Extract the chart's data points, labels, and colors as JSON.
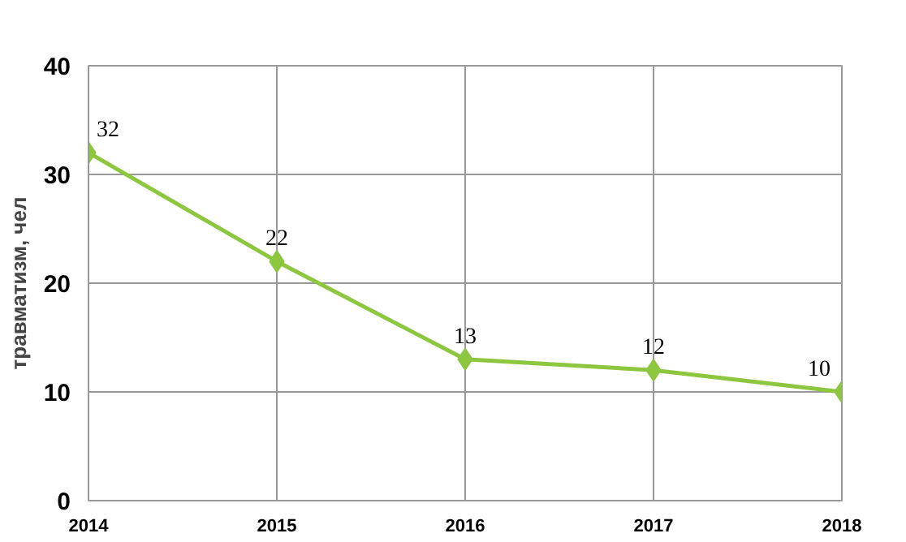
{
  "chart_data": {
    "type": "line",
    "ylabel": "травматизм, чел",
    "x": [
      2014,
      2015,
      2016,
      2017,
      2018
    ],
    "series": [
      {
        "color": "#8dc63f",
        "values": [
          32,
          22,
          13,
          12,
          10
        ]
      }
    ],
    "xlim": [
      2014,
      2018
    ],
    "xticks": [
      2014,
      2015,
      2016,
      2017,
      2018
    ],
    "ylim": [
      0,
      40
    ],
    "yticks": [
      0,
      10,
      20,
      30,
      40
    ],
    "grid": true,
    "marker": "diamond",
    "line_style": "solid",
    "data_labels": true
  }
}
